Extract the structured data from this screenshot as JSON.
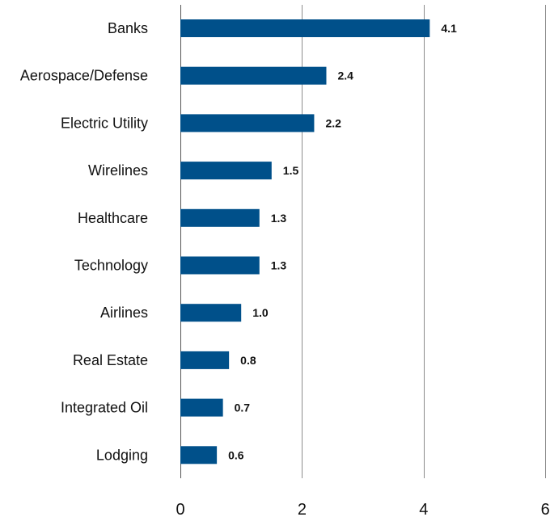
{
  "chart_data": {
    "type": "bar",
    "orientation": "horizontal",
    "categories": [
      "Banks",
      "Aerospace/Defense",
      "Electric Utility",
      "Wirelines",
      "Healthcare",
      "Technology",
      "Airlines",
      "Real Estate",
      "Integrated Oil",
      "Lodging"
    ],
    "values": [
      4.1,
      2.4,
      2.2,
      1.5,
      1.3,
      1.3,
      1.0,
      0.8,
      0.7,
      0.6
    ],
    "value_labels": [
      "4.1",
      "2.4",
      "2.2",
      "1.5",
      "1.3",
      "1.3",
      "1.0",
      "0.8",
      "0.7",
      "0.6"
    ],
    "x_ticks": [
      "0",
      "2",
      "4",
      "6"
    ],
    "xlim": [
      0,
      6
    ],
    "grid": "vertical",
    "bar_color": "#00508a",
    "title": "",
    "xlabel": "",
    "ylabel": ""
  }
}
